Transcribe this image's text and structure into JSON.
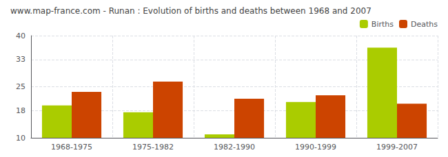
{
  "chart_data": {
    "type": "bar",
    "title": "www.map-france.com - Runan : Evolution of births and deaths between 1968 and 2007",
    "categories": [
      "1968-1975",
      "1975-1982",
      "1982-1990",
      "1990-1999",
      "1999-2007"
    ],
    "series": [
      {
        "name": "Births",
        "color": "#aacc00",
        "values": [
          19.5,
          17.5,
          11.0,
          20.5,
          36.5
        ]
      },
      {
        "name": "Deaths",
        "color": "#cc4400",
        "values": [
          23.5,
          26.5,
          21.5,
          22.5,
          20.0
        ]
      }
    ],
    "ylim": [
      10,
      40
    ],
    "yticks": [
      10,
      18,
      25,
      33,
      40
    ],
    "grid": true,
    "legend": "upper right"
  }
}
